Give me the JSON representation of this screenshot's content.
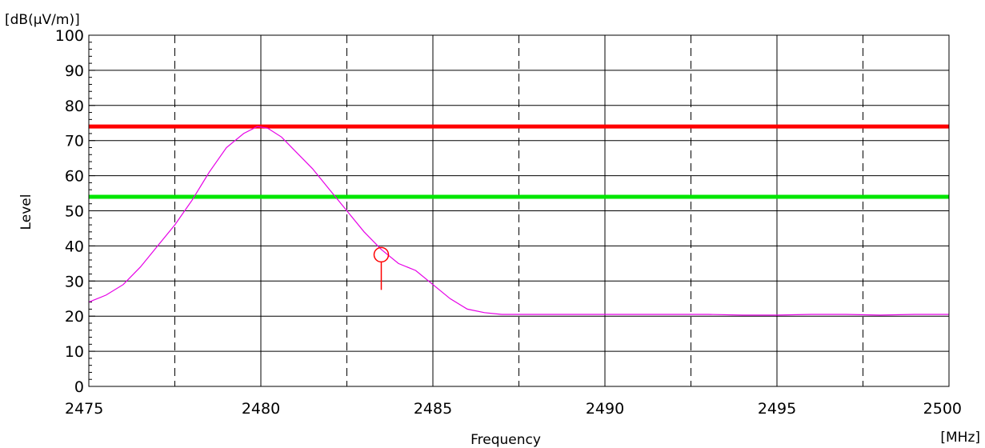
{
  "chart_data": {
    "type": "line",
    "units_label": "[dB(μV/m)]",
    "ylabel": "Level",
    "xlabel": "Frequency",
    "x_unit": "[MHz]",
    "xlim": [
      2475,
      2500
    ],
    "ylim": [
      0,
      100
    ],
    "x_major_ticks": [
      2475,
      2480,
      2485,
      2490,
      2495,
      2500
    ],
    "x_minor_gridlines": [
      2477.5,
      2482.5,
      2487.5,
      2492.5,
      2497.5
    ],
    "y_major_ticks": [
      0,
      10,
      20,
      30,
      40,
      50,
      60,
      70,
      80,
      90,
      100
    ],
    "grid": true,
    "limit_lines": [
      {
        "value": 74,
        "color": "#ff0000"
      },
      {
        "value": 54,
        "color": "#00e600"
      }
    ],
    "series": [
      {
        "color": "#e600e6",
        "x": [
          2475,
          2475.5,
          2476,
          2476.5,
          2477,
          2477.5,
          2478,
          2478.5,
          2479,
          2479.5,
          2479.9,
          2480.2,
          2480.6,
          2481,
          2481.5,
          2482,
          2482.5,
          2483,
          2483.5,
          2484,
          2484.5,
          2485,
          2485.5,
          2486,
          2486.5,
          2487,
          2488,
          2490,
          2492,
          2493,
          2494,
          2495,
          2496,
          2497,
          2498,
          2499,
          2500
        ],
        "y": [
          24,
          26,
          29,
          34,
          40,
          46,
          53,
          61,
          68,
          72,
          74,
          73.5,
          71,
          67,
          62,
          56,
          50,
          44,
          39,
          35,
          33,
          29,
          25,
          22,
          21,
          20.5,
          20.5,
          20.5,
          20.5,
          20.5,
          20.3,
          20.3,
          20.5,
          20.5,
          20.3,
          20.5,
          20.5
        ]
      }
    ],
    "markers": [
      {
        "x": 2483.5,
        "y": 37.5,
        "color": "#ff0000"
      }
    ]
  }
}
